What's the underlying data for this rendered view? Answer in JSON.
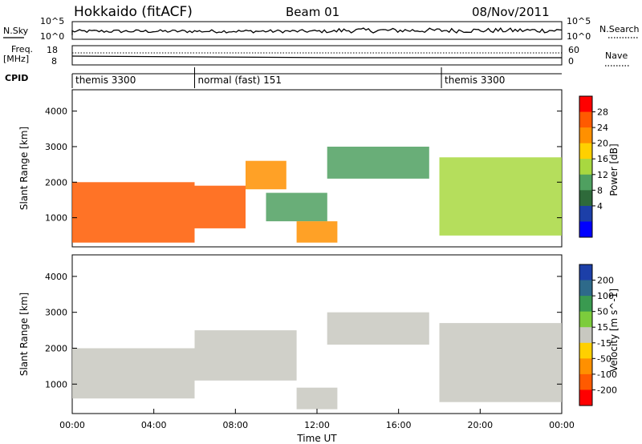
{
  "header": {
    "title": "Hokkaido (fitACF)",
    "beam": "Beam 01",
    "date": "08/Nov/2011"
  },
  "left_labels": {
    "nsky": "N.Sky",
    "freq": "Freq.",
    "freq_unit": "[MHz]",
    "cpid": "CPID"
  },
  "right_labels": {
    "nsearch": "N.Search",
    "nave": "Nave"
  },
  "scales": {
    "noise_top": "10^5",
    "noise_bottom": "10^0",
    "freq_top": "18",
    "freq_bottom": "8",
    "nave_top": "60",
    "nave_bottom": "0"
  },
  "cpid_segments": [
    {
      "label": "themis 3300",
      "start": 0,
      "end": 6
    },
    {
      "label": "normal (fast) 151",
      "start": 6,
      "end": 18.1
    },
    {
      "label": "themis 3300",
      "start": 18.1,
      "end": 24
    }
  ],
  "axes": {
    "ylabel": "Slant Range [km]",
    "xlabel": "Time UT",
    "yticks": [
      1000,
      2000,
      3000,
      4000
    ],
    "xticks": [
      "00:00",
      "04:00",
      "08:00",
      "12:00",
      "16:00",
      "20:00",
      "00:00"
    ]
  },
  "colorbars": {
    "power": {
      "label": "Power [dB]",
      "ticks": [
        "28",
        "24",
        "20",
        "16",
        "12",
        "8",
        "4"
      ],
      "colors": [
        "#ff0000",
        "#ff5a00",
        "#ff9000",
        "#ffd000",
        "#a8d840",
        "#4fa060",
        "#2e6a3a",
        "#1c3fa8",
        "#0000ff"
      ]
    },
    "velocity": {
      "label": "Velocity [m s^-1]",
      "ticks": [
        "200",
        "100",
        "50",
        "15",
        "-15",
        "-50",
        "-100",
        "-200"
      ],
      "colors": [
        "#1c3fa8",
        "#2e6a8a",
        "#3a9a50",
        "#7ccc3c",
        "#c8c8c0",
        "#ffd000",
        "#ff9000",
        "#ff5a00",
        "#ff0000"
      ]
    }
  },
  "chart_data": {
    "type": "heatmap",
    "title": "Hokkaido (fitACF)",
    "xlabel": "Time UT",
    "ylabel": "Slant Range [km]",
    "xlim": [
      0,
      24
    ],
    "ylim": [
      180,
      4600
    ],
    "panels": [
      {
        "name": "Power [dB]",
        "clim": [
          0,
          30
        ],
        "regions": [
          {
            "t0": 0,
            "t1": 6,
            "r0": 300,
            "r1": 2000,
            "value": 26
          },
          {
            "t0": 6,
            "t1": 8.5,
            "r0": 700,
            "r1": 1900,
            "value": 27
          },
          {
            "t0": 8.5,
            "t1": 10.5,
            "r0": 1800,
            "r1": 2600,
            "value": 22
          },
          {
            "t0": 9.5,
            "t1": 12.5,
            "r0": 900,
            "r1": 1700,
            "value": 12
          },
          {
            "t0": 11,
            "t1": 13,
            "r0": 300,
            "r1": 900,
            "value": 24
          },
          {
            "t0": 12.5,
            "t1": 17.5,
            "r0": 2100,
            "r1": 3000,
            "value": 12
          },
          {
            "t0": 18,
            "t1": 24,
            "r0": 500,
            "r1": 2700,
            "value": 16
          }
        ]
      },
      {
        "name": "Velocity [m s^-1]",
        "clim": [
          -200,
          200
        ],
        "regions": [
          {
            "t0": 0,
            "t1": 6,
            "r0": 600,
            "r1": 2000,
            "value": 0
          },
          {
            "t0": 6,
            "t1": 11,
            "r0": 1100,
            "r1": 2500,
            "value": 0
          },
          {
            "t0": 11,
            "t1": 13,
            "r0": 300,
            "r1": 900,
            "value": 0
          },
          {
            "t0": 12.5,
            "t1": 17.5,
            "r0": 2100,
            "r1": 3000,
            "value": -20
          },
          {
            "t0": 18,
            "t1": 24,
            "r0": 500,
            "r1": 2700,
            "value": 0
          }
        ]
      }
    ]
  }
}
